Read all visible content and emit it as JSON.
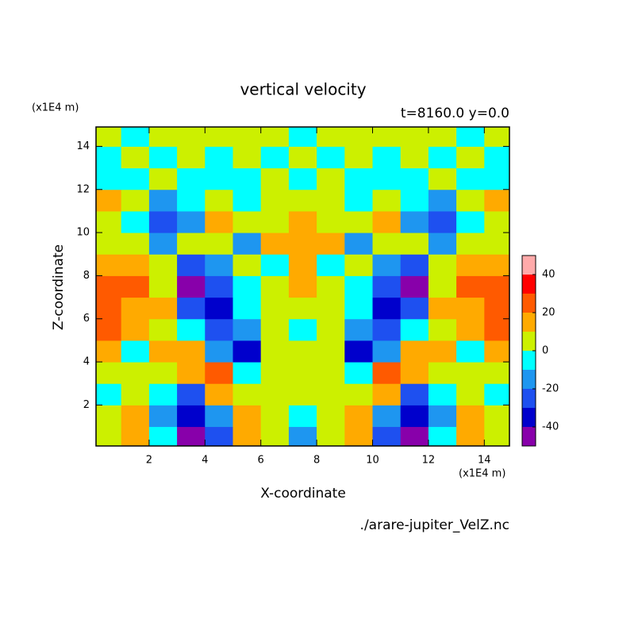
{
  "chart_data": {
    "type": "contour",
    "title": "vertical velocity",
    "subtitle": "t=8160.0 y=0.0",
    "x_label": "X-coordinate",
    "y_label": "Z-coordinate",
    "x_unit": "(x1E4 m)",
    "y_unit": "(x1E4 m)",
    "file_label": "./arare-jupiter_VelZ.nc",
    "xlim": [
      0.1,
      14.9
    ],
    "ylim": [
      0.1,
      14.9
    ],
    "xticks": [
      2,
      4,
      6,
      8,
      10,
      12,
      14
    ],
    "yticks": [
      2,
      4,
      6,
      8,
      10,
      12,
      14
    ],
    "x": [
      0.5,
      1.5,
      2.5,
      3.5,
      4.5,
      5.5,
      6.5,
      7.5,
      8.5,
      9.5,
      10.5,
      11.5,
      12.5,
      13.5,
      14.5
    ],
    "y": [
      0.5,
      1.5,
      2.5,
      3.5,
      4.5,
      5.5,
      6.5,
      7.5,
      8.5,
      9.5,
      10.5,
      11.5,
      12.5,
      13.5,
      14.5
    ],
    "z": [
      [
        5,
        15,
        -10,
        -45,
        -25,
        15,
        5,
        -15,
        5,
        15,
        -25,
        -45,
        -10,
        15,
        5
      ],
      [
        5,
        15,
        -20,
        -35,
        -15,
        15,
        5,
        -5,
        5,
        15,
        -15,
        -35,
        -20,
        15,
        5
      ],
      [
        -5,
        5,
        -10,
        -30,
        15,
        5,
        0,
        5,
        0,
        5,
        15,
        -30,
        -10,
        5,
        -5
      ],
      [
        5,
        0,
        5,
        15,
        25,
        -5,
        5,
        5,
        5,
        -5,
        25,
        15,
        5,
        0,
        5
      ],
      [
        15,
        -5,
        10,
        15,
        -15,
        -35,
        5,
        5,
        5,
        -35,
        -15,
        15,
        10,
        -5,
        15
      ],
      [
        25,
        15,
        5,
        -5,
        -25,
        -15,
        5,
        -5,
        5,
        -15,
        -25,
        -5,
        5,
        15,
        25
      ],
      [
        25,
        15,
        15,
        -25,
        -35,
        -5,
        5,
        5,
        5,
        -5,
        -35,
        -25,
        15,
        15,
        25
      ],
      [
        25,
        25,
        0,
        -45,
        -25,
        -5,
        5,
        15,
        5,
        -5,
        -25,
        -45,
        0,
        25,
        25
      ],
      [
        15,
        15,
        5,
        -25,
        -15,
        5,
        -5,
        15,
        -5,
        5,
        -15,
        -25,
        5,
        15,
        15
      ],
      [
        5,
        5,
        -15,
        5,
        5,
        -15,
        15,
        15,
        15,
        -15,
        5,
        5,
        -15,
        5,
        5
      ],
      [
        5,
        -5,
        -25,
        -15,
        15,
        5,
        5,
        15,
        5,
        5,
        15,
        -15,
        -25,
        -5,
        5
      ],
      [
        15,
        5,
        -15,
        -5,
        5,
        -5,
        5,
        5,
        5,
        -5,
        5,
        -5,
        -15,
        5,
        15
      ],
      [
        -5,
        -5,
        5,
        -5,
        -5,
        -5,
        0,
        -5,
        0,
        -5,
        -5,
        -5,
        5,
        -5,
        -5
      ],
      [
        -5,
        5,
        -5,
        5,
        -5,
        5,
        -5,
        5,
        -5,
        5,
        -5,
        5,
        -5,
        5,
        -5
      ],
      [
        5,
        -5,
        5,
        5,
        5,
        5,
        5,
        -5,
        5,
        5,
        5,
        5,
        5,
        -5,
        5
      ]
    ],
    "levels": [
      -50,
      -40,
      -30,
      -20,
      -10,
      0,
      10,
      20,
      30,
      40,
      50
    ],
    "colors": [
      "#8800aa",
      "#0000cc",
      "#1e50f0",
      "#1e96f0",
      "#00ffff",
      "#ccf000",
      "#ffaa00",
      "#ff5a00",
      "#ff0000",
      "#ffaaaa"
    ],
    "colorbar_ticks": [
      -40,
      -20,
      0,
      20,
      40
    ]
  }
}
